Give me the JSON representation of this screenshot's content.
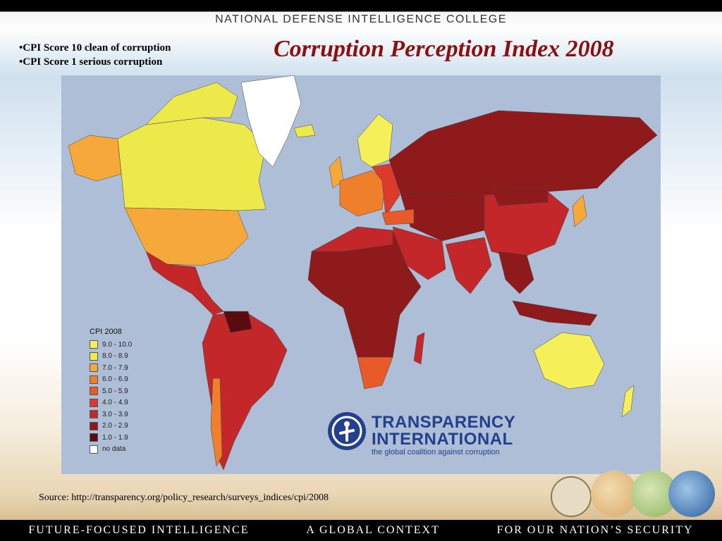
{
  "header": {
    "college": "NATIONAL DEFENSE INTELLIGENCE COLLEGE"
  },
  "bullets": [
    "•CPI Score 10 clean of corruption",
    "•CPI Score 1 serious corruption"
  ],
  "title": "Corruption Perception Index 2008",
  "map": {
    "legend": {
      "title": "CPI 2008",
      "items": [
        {
          "label": "9.0 - 10.0",
          "color": "#f5ef5a"
        },
        {
          "label": "8.0 - 8.9",
          "color": "#eee94a"
        },
        {
          "label": "7.0 - 7.9",
          "color": "#f6a83a"
        },
        {
          "label": "6.0 - 6.9",
          "color": "#ef7f2a"
        },
        {
          "label": "5.0 - 5.9",
          "color": "#e85a2a"
        },
        {
          "label": "4.0 - 4.9",
          "color": "#dc3a2a"
        },
        {
          "label": "3.0 - 3.9",
          "color": "#c4272a"
        },
        {
          "label": "2.0 - 2.9",
          "color": "#8e1a1c"
        },
        {
          "label": "1.0 - 1.9",
          "color": "#5a0a10"
        },
        {
          "label": "no data",
          "color": "#ffffff"
        }
      ]
    },
    "logo": {
      "line1": "TRANSPARENCY",
      "line2": "INTERNATIONAL",
      "tagline": "the global coalition against corruption"
    }
  },
  "source": "Source: http://transparency.org/policy_research/surveys_indices/cpi/2008",
  "footer": [
    "FUTURE-FOCUSED INTELLIGENCE",
    "A GLOBAL CONTEXT",
    "FOR OUR NATION’S SECURITY"
  ]
}
